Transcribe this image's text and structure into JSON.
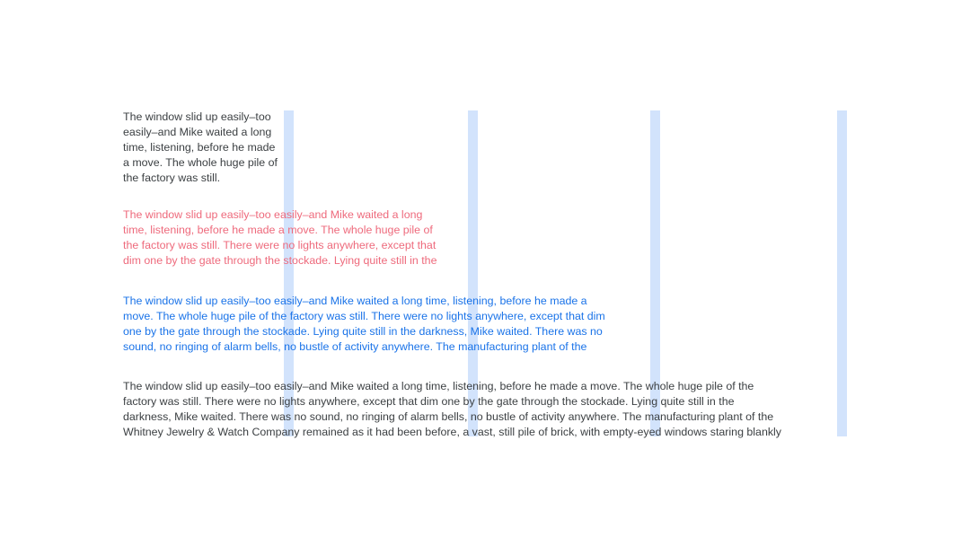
{
  "blocks": [
    {
      "lines": [
        "The window slid up easily–too",
        "easily–and Mike waited a long",
        "time, listening, before he made",
        "a move. The whole huge pile of",
        "the factory was still."
      ]
    },
    {
      "lines": [
        "The window slid up easily–too easily–and Mike waited a long",
        "time, listening, before he made a move. The whole huge pile of",
        "the factory was still. There were no lights anywhere, except that",
        "dim one by the gate through the stockade. Lying quite still in the"
      ]
    },
    {
      "lines": [
        "The window slid up easily–too easily–and Mike waited a long time, listening, before he made a",
        "move. The whole huge pile of the factory was still. There were no lights anywhere, except that dim",
        "one by the gate through the stockade. Lying quite still in the darkness, Mike waited. There was no",
        "sound, no ringing of alarm bells, no bustle of activity anywhere. The manufacturing plant of the"
      ]
    },
    {
      "lines": [
        "The window slid up easily–too easily–and Mike waited a long time, listening, before he made a move. The whole huge pile of the",
        "factory was still. There were no lights anywhere, except that dim one by the gate through the stockade. Lying quite still in the",
        "darkness, Mike waited. There was no sound, no ringing of alarm bells, no bustle of activity anywhere. The manufacturing plant of the",
        "Whitney Jewelry &amp; Watch Company remained as it had been before, a vast, still pile of brick, with empty-eyed windows staring blankly"
      ]
    }
  ]
}
